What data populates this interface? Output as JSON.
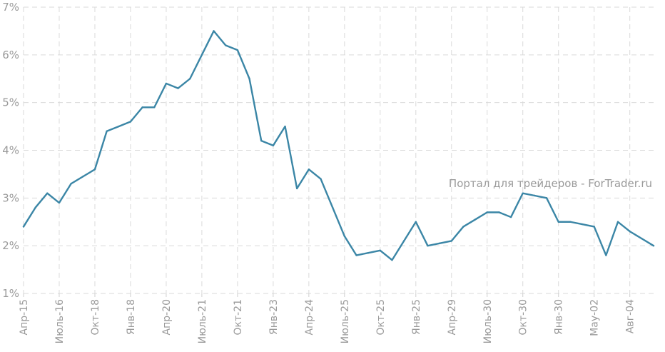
{
  "watermark": "Портал для трейдеров - ForTrader.ru",
  "colors": {
    "line": "#3b86a6",
    "grid": "#dadada",
    "text": "#9a9a9a"
  },
  "chart_data": {
    "type": "line",
    "title": "",
    "xlabel": "",
    "ylabel": "",
    "ylim": [
      1,
      7
    ],
    "grid": true,
    "yticks": [
      {
        "value": 1,
        "label": "1%"
      },
      {
        "value": 2,
        "label": "2%"
      },
      {
        "value": 3,
        "label": "3%"
      },
      {
        "value": 4,
        "label": "4%"
      },
      {
        "value": 5,
        "label": "5%"
      },
      {
        "value": 6,
        "label": "6%"
      },
      {
        "value": 7,
        "label": "7%"
      }
    ],
    "xticks": [
      {
        "index": 0,
        "label": "Апр-15"
      },
      {
        "index": 3,
        "label": "Июль-16"
      },
      {
        "index": 6,
        "label": "Окт-18"
      },
      {
        "index": 9,
        "label": "Янв-18"
      },
      {
        "index": 12,
        "label": "Апр-20"
      },
      {
        "index": 15,
        "label": "Июль-21"
      },
      {
        "index": 18,
        "label": "Окт-21"
      },
      {
        "index": 21,
        "label": "Янв-23"
      },
      {
        "index": 24,
        "label": "Апр-24"
      },
      {
        "index": 27,
        "label": "Июль-25"
      },
      {
        "index": 30,
        "label": "Окт-25"
      },
      {
        "index": 33,
        "label": "Янв-25"
      },
      {
        "index": 36,
        "label": "Апр-29"
      },
      {
        "index": 39,
        "label": "Июль-30"
      },
      {
        "index": 42,
        "label": "Окт-30"
      },
      {
        "index": 45,
        "label": "Янв-30"
      },
      {
        "index": 48,
        "label": "Мау-02"
      },
      {
        "index": 51,
        "label": "Авг-04"
      }
    ],
    "series": [
      {
        "values": [
          2.4,
          2.8,
          3.1,
          2.9,
          3.3,
          3.45,
          3.6,
          4.4,
          4.5,
          4.6,
          4.9,
          4.9,
          5.4,
          5.3,
          5.5,
          6.0,
          6.5,
          6.2,
          6.1,
          5.5,
          4.2,
          4.1,
          4.5,
          3.2,
          3.6,
          3.4,
          2.8,
          2.2,
          1.8,
          1.85,
          1.9,
          1.7,
          2.1,
          2.5,
          2.0,
          2.05,
          2.1,
          2.4,
          2.55,
          2.7,
          2.7,
          2.6,
          3.1,
          3.05,
          3.0,
          2.5,
          2.5,
          2.45,
          2.4,
          1.8,
          2.5,
          2.3,
          2.15,
          2.0
        ]
      }
    ]
  }
}
